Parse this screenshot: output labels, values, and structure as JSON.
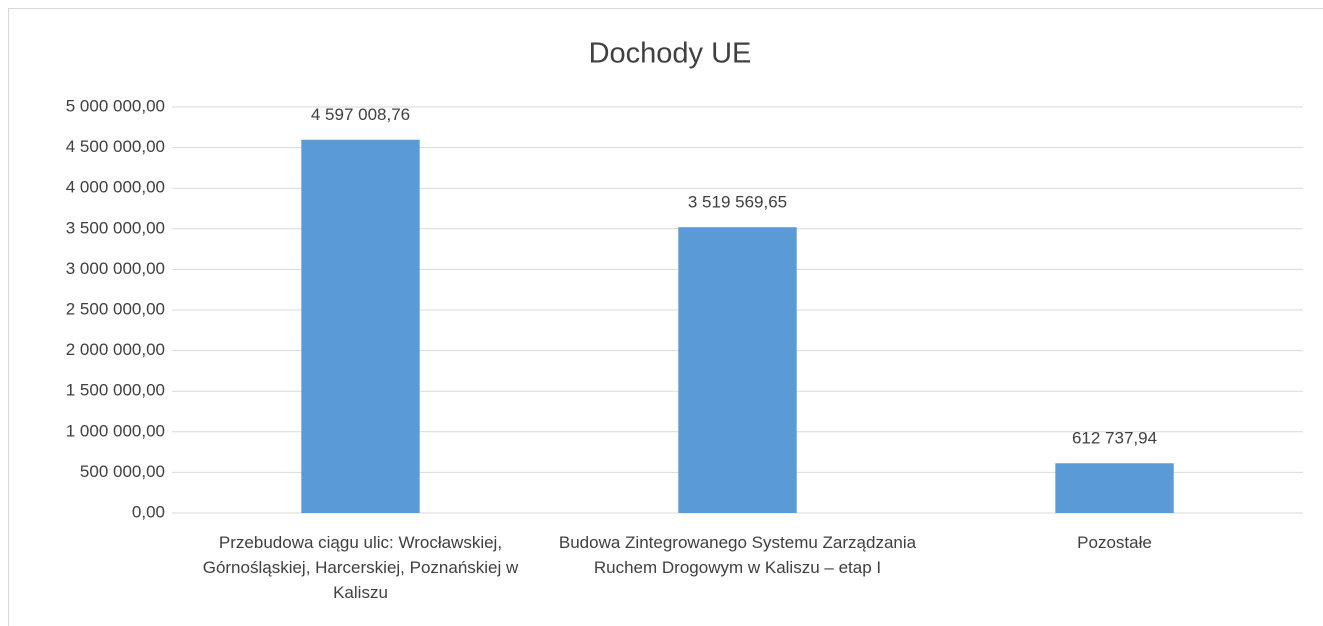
{
  "chart_data": {
    "type": "bar",
    "title": "Dochody UE",
    "categories": [
      "Przebudowa ciągu ulic: Wrocławskiej, Górnośląskiej, Harcerskiej, Poznańskiej w Kaliszu",
      "Budowa Zintegrowanego Systemu Zarządzania Ruchem Drogowym w Kaliszu – etap I",
      "Pozostałe"
    ],
    "values": [
      4597008.76,
      3519569.65,
      612737.94
    ],
    "value_labels": [
      "4 597 008,76",
      "3 519 569,65",
      "612 737,94"
    ],
    "color": "#5b9bd5",
    "ylim": [
      0,
      5000000
    ],
    "yticks": [
      {
        "value": 0,
        "label": "0,00"
      },
      {
        "value": 500000,
        "label": "500 000,00"
      },
      {
        "value": 1000000,
        "label": "1 000 000,00"
      },
      {
        "value": 1500000,
        "label": "1 500 000,00"
      },
      {
        "value": 2000000,
        "label": "2 000 000,00"
      },
      {
        "value": 2500000,
        "label": "2 500 000,00"
      },
      {
        "value": 3000000,
        "label": "3 000 000,00"
      },
      {
        "value": 3500000,
        "label": "3 500 000,00"
      },
      {
        "value": 4000000,
        "label": "4 000 000,00"
      },
      {
        "value": 4500000,
        "label": "4 500 000,00"
      },
      {
        "value": 5000000,
        "label": "5 000 000,00"
      }
    ],
    "grid": true
  }
}
